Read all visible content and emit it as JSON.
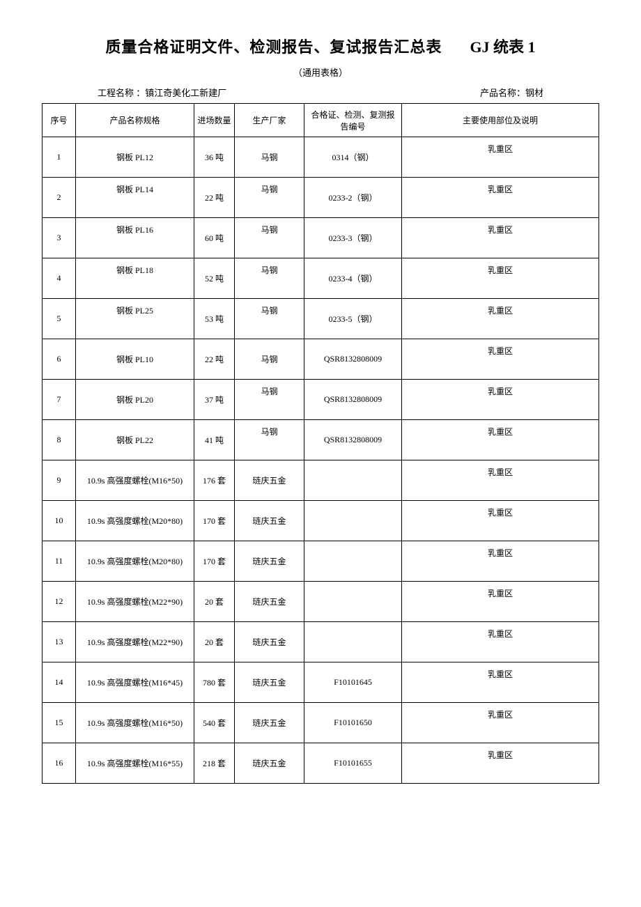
{
  "title": "质量合格证明文件、检测报告、复试报告汇总表",
  "form_code": "GJ 统表 1",
  "subtitle": "（通用表格）",
  "project_label": "工程名称 ：",
  "project_name": "镇江奇美化工新建厂",
  "product_label": "产品名称：",
  "product_name": "钢材",
  "columns": {
    "seq": "序号",
    "name": "产品名称规格",
    "qty": "进场数量",
    "mfr": "生产厂家",
    "cert": "合格证、检测、复测报告编号",
    "use": "主要使用部位及说明"
  },
  "rows": [
    {
      "seq": "1",
      "name": "钢板 PL12",
      "qty": "36 吨",
      "mfr": "马钢",
      "cert": "0314（钢）",
      "use": "乳重区",
      "name_top": false,
      "mfr_top": false
    },
    {
      "seq": "2",
      "name": "钢板 PL14",
      "qty": "22 吨",
      "mfr": "马钢",
      "cert": "0233-2（钢）",
      "use": "乳重区",
      "name_top": true,
      "mfr_top": true
    },
    {
      "seq": "3",
      "name": "钢板 PL16",
      "qty": "60 吨",
      "mfr": "马钢",
      "cert": "0233-3（钢）",
      "use": "乳重区",
      "name_top": true,
      "mfr_top": true
    },
    {
      "seq": "4",
      "name": "钢板 PL18",
      "qty": "52 吨",
      "mfr": "马钢",
      "cert": "0233-4（钢）",
      "use": "乳重区",
      "name_top": true,
      "mfr_top": true
    },
    {
      "seq": "5",
      "name": "钢板 PL25",
      "qty": "53 吨",
      "mfr": "马钢",
      "cert": "0233-5（钢）",
      "use": "乳重区",
      "name_top": true,
      "mfr_top": true
    },
    {
      "seq": "6",
      "name": "钢板 PL10",
      "qty": "22 吨",
      "mfr": "马钢",
      "cert": "QSR8132808009",
      "use": "乳重区",
      "name_top": false,
      "mfr_top": false
    },
    {
      "seq": "7",
      "name": "钢板 PL20",
      "qty": "37 吨",
      "mfr": "马钢",
      "cert": "QSR8132808009",
      "use": "乳重区",
      "name_top": false,
      "mfr_top": true
    },
    {
      "seq": "8",
      "name": "钢板 PL22",
      "qty": "41 吨",
      "mfr": "马钢",
      "cert": "QSR8132808009",
      "use": "乳重区",
      "name_top": false,
      "mfr_top": true
    },
    {
      "seq": "9",
      "name": "10.9s 高强度螺栓(M16*50)",
      "qty": "176 套",
      "mfr": "琏庆五金",
      "cert": "",
      "use": "乳重区",
      "name_top": false,
      "mfr_top": false
    },
    {
      "seq": "10",
      "name": "10.9s 高强度螺栓(M20*80)",
      "qty": "170 套",
      "mfr": "琏庆五金",
      "cert": "",
      "use": "乳重区",
      "name_top": false,
      "mfr_top": false
    },
    {
      "seq": "11",
      "name": "10.9s 高强度螺栓(M20*80)",
      "qty": "170 套",
      "mfr": "琏庆五金",
      "cert": "",
      "use": "乳重区",
      "name_top": false,
      "mfr_top": false
    },
    {
      "seq": "12",
      "name": "10.9s 高强度螺栓(M22*90)",
      "qty": "20 套",
      "mfr": "琏庆五金",
      "cert": "",
      "use": "乳重区",
      "name_top": false,
      "mfr_top": false
    },
    {
      "seq": "13",
      "name": "10.9s 高强度螺栓(M22*90)",
      "qty": "20 套",
      "mfr": "琏庆五金",
      "cert": "",
      "use": "乳重区",
      "name_top": false,
      "mfr_top": false
    },
    {
      "seq": "14",
      "name": "10.9s 高强度螺栓(M16*45)",
      "qty": "780 套",
      "mfr": "琏庆五金",
      "cert": "F10101645",
      "use": "乳重区",
      "name_top": false,
      "mfr_top": false
    },
    {
      "seq": "15",
      "name": "10.9s 高强度螺栓(M16*50)",
      "qty": "540 套",
      "mfr": "琏庆五金",
      "cert": "F10101650",
      "use": "乳重区",
      "name_top": false,
      "mfr_top": false
    },
    {
      "seq": "16",
      "name": "10.9s 高强度螺栓(M16*55)",
      "qty": "218 套",
      "mfr": "琏庆五金",
      "cert": "F10101655",
      "use": "乳重区",
      "name_top": false,
      "mfr_top": false
    }
  ]
}
